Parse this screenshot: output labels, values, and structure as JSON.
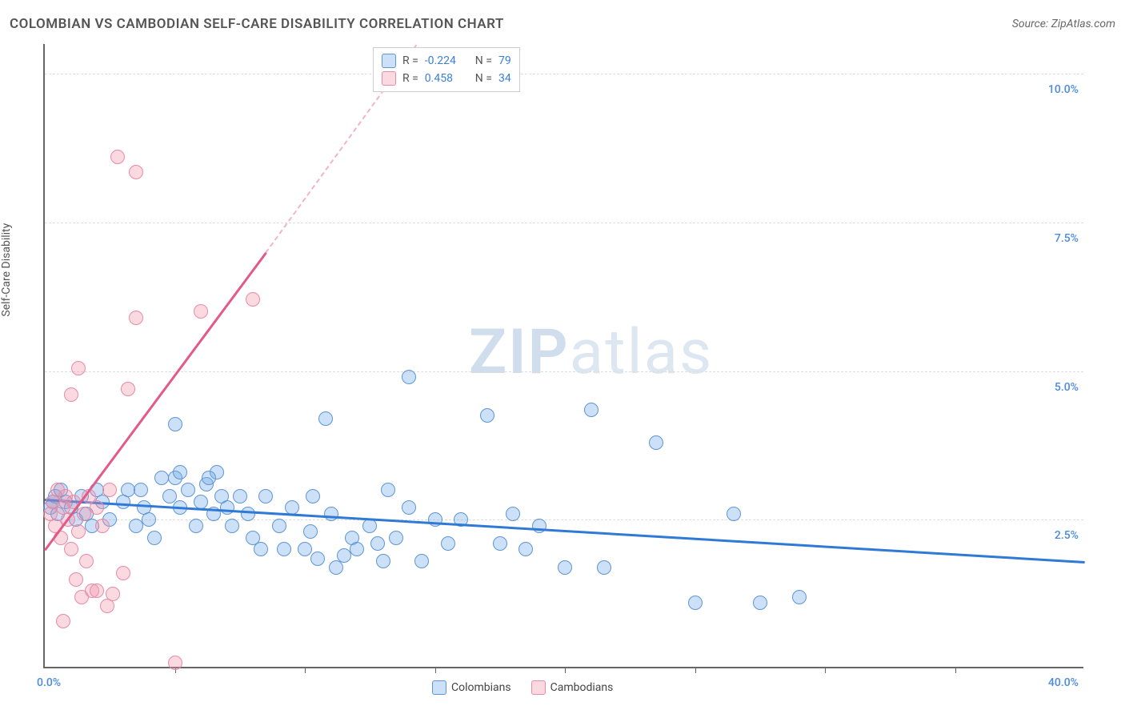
{
  "title": "COLOMBIAN VS CAMBODIAN SELF-CARE DISABILITY CORRELATION CHART",
  "source": "Source: ZipAtlas.com",
  "ylabel": "Self-Care Disability",
  "watermark_bold": "ZIP",
  "watermark_light": "atlas",
  "chart": {
    "type": "scatter",
    "xlim": [
      0,
      40
    ],
    "ylim": [
      0,
      10.5
    ],
    "x_corner_labels": [
      "0.0%",
      "40.0%"
    ],
    "y_gridlines": [
      2.5,
      5.0,
      7.5,
      10.0
    ],
    "y_tick_labels": [
      "2.5%",
      "5.0%",
      "7.5%",
      "10.0%"
    ],
    "x_ticks_at": [
      5,
      10,
      15,
      20,
      25,
      30,
      35
    ],
    "background_color": "#ffffff",
    "grid_color": "#dddddd",
    "axis_color": "#666666",
    "ylabel_color": "#4a8ae0",
    "xlabel_color": "#4a8ae0"
  },
  "series": [
    {
      "name": "Colombians",
      "fill_color": "rgba(110,168,232,0.35)",
      "stroke_color": "#5e95d6",
      "marker_radius": 9,
      "regression": {
        "x0": 0,
        "y0": 2.85,
        "x1": 40,
        "y1": 1.8,
        "color": "#2f7ad6",
        "dashed": false
      },
      "R": "-0.224",
      "N": "79",
      "points": [
        [
          0.2,
          2.7
        ],
        [
          0.3,
          2.8
        ],
        [
          0.4,
          2.9
        ],
        [
          0.5,
          2.6
        ],
        [
          0.6,
          3.0
        ],
        [
          0.8,
          2.8
        ],
        [
          1.0,
          2.7
        ],
        [
          1.2,
          2.5
        ],
        [
          1.4,
          2.9
        ],
        [
          1.6,
          2.6
        ],
        [
          1.8,
          2.4
        ],
        [
          2.0,
          3.0
        ],
        [
          2.2,
          2.8
        ],
        [
          2.5,
          2.5
        ],
        [
          5.0,
          4.1
        ],
        [
          3.0,
          2.8
        ],
        [
          3.2,
          3.0
        ],
        [
          3.5,
          2.4
        ],
        [
          3.8,
          2.7
        ],
        [
          4.0,
          2.5
        ],
        [
          4.2,
          2.2
        ],
        [
          4.5,
          3.2
        ],
        [
          4.8,
          2.9
        ],
        [
          5.0,
          3.2
        ],
        [
          5.2,
          2.7
        ],
        [
          5.5,
          3.0
        ],
        [
          5.2,
          3.3
        ],
        [
          5.8,
          2.4
        ],
        [
          6.0,
          2.8
        ],
        [
          6.2,
          3.1
        ],
        [
          6.5,
          2.6
        ],
        [
          6.6,
          3.3
        ],
        [
          6.8,
          2.9
        ],
        [
          7.0,
          2.7
        ],
        [
          7.2,
          2.4
        ],
        [
          7.5,
          2.9
        ],
        [
          7.8,
          2.6
        ],
        [
          8.0,
          2.2
        ],
        [
          8.5,
          2.9
        ],
        [
          9.0,
          2.4
        ],
        [
          9.5,
          2.7
        ],
        [
          10.0,
          2.0
        ],
        [
          10.2,
          2.3
        ],
        [
          10.5,
          1.85
        ],
        [
          10.8,
          4.2
        ],
        [
          11.0,
          2.6
        ],
        [
          11.2,
          1.7
        ],
        [
          11.5,
          1.9
        ],
        [
          11.8,
          2.2
        ],
        [
          12.0,
          2.0
        ],
        [
          12.5,
          2.4
        ],
        [
          13.0,
          1.8
        ],
        [
          13.2,
          3.0
        ],
        [
          13.5,
          2.2
        ],
        [
          14.0,
          2.7
        ],
        [
          14.0,
          4.9
        ],
        [
          14.5,
          1.8
        ],
        [
          15.0,
          2.5
        ],
        [
          15.5,
          2.1
        ],
        [
          16.0,
          2.5
        ],
        [
          17.0,
          4.25
        ],
        [
          17.5,
          2.1
        ],
        [
          18.0,
          2.6
        ],
        [
          18.5,
          2.0
        ],
        [
          19.0,
          2.4
        ],
        [
          20.0,
          1.7
        ],
        [
          21.0,
          4.35
        ],
        [
          21.5,
          1.7
        ],
        [
          23.5,
          3.8
        ],
        [
          25.0,
          1.1
        ],
        [
          26.5,
          2.6
        ],
        [
          27.5,
          1.1
        ],
        [
          29.0,
          1.2
        ],
        [
          10.3,
          2.9
        ],
        [
          8.3,
          2.0
        ],
        [
          9.2,
          2.0
        ],
        [
          12.8,
          2.1
        ],
        [
          6.3,
          3.2
        ],
        [
          3.7,
          3.0
        ]
      ]
    },
    {
      "name": "Cambodians",
      "fill_color": "rgba(240,145,170,0.35)",
      "stroke_color": "#e88aa6",
      "marker_radius": 9,
      "regression": {
        "x0": 0,
        "y0": 2.0,
        "x1": 8.5,
        "y1": 7.0,
        "color": "#e35a87",
        "dashed": false
      },
      "regression_ext": {
        "x0": 8.5,
        "y0": 7.0,
        "x1": 14.3,
        "y1": 10.5,
        "color": "#e35a87",
        "dashed": true
      },
      "R": "0.458",
      "N": "34",
      "points": [
        [
          0.2,
          2.6
        ],
        [
          0.3,
          2.8
        ],
        [
          0.4,
          2.4
        ],
        [
          0.5,
          3.0
        ],
        [
          0.6,
          2.2
        ],
        [
          0.7,
          2.7
        ],
        [
          0.8,
          2.9
        ],
        [
          0.9,
          2.5
        ],
        [
          1.0,
          2.0
        ],
        [
          1.1,
          2.8
        ],
        [
          1.2,
          1.5
        ],
        [
          1.0,
          4.6
        ],
        [
          1.3,
          2.3
        ],
        [
          1.4,
          1.2
        ],
        [
          1.3,
          5.05
        ],
        [
          1.5,
          2.6
        ],
        [
          1.6,
          1.8
        ],
        [
          1.7,
          2.9
        ],
        [
          1.8,
          1.3
        ],
        [
          2.0,
          2.7
        ],
        [
          2.0,
          1.3
        ],
        [
          2.2,
          2.4
        ],
        [
          2.4,
          1.05
        ],
        [
          2.5,
          3.0
        ],
        [
          2.6,
          1.25
        ],
        [
          2.8,
          8.6
        ],
        [
          0.7,
          0.8
        ],
        [
          3.2,
          4.7
        ],
        [
          3.5,
          8.35
        ],
        [
          3.5,
          5.9
        ],
        [
          5.0,
          0.1
        ],
        [
          6.0,
          6.0
        ],
        [
          3.0,
          1.6
        ],
        [
          8.0,
          6.2
        ]
      ]
    }
  ],
  "stats_box": {
    "label_R": "R =",
    "label_N": "N =",
    "value_color": "#3a7ed8"
  },
  "legend_bottom": {
    "items": [
      "Colombians",
      "Cambodians"
    ]
  }
}
